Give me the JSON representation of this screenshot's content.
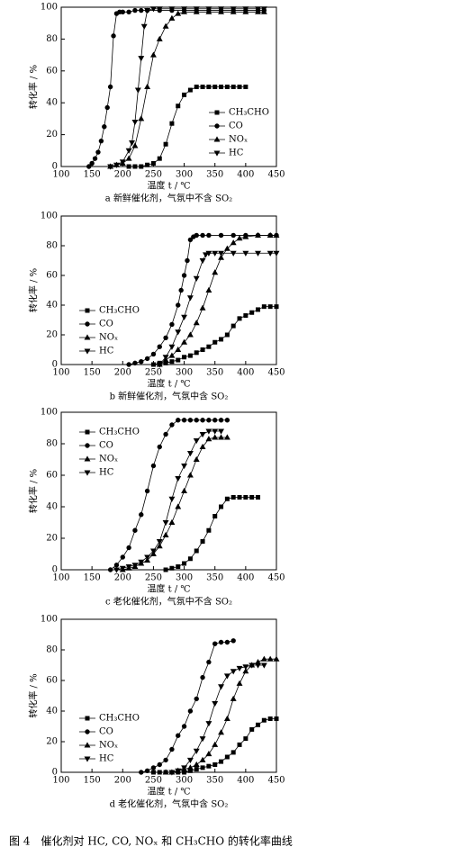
{
  "figure_caption": "图 4　催化剂对 HC, CO, NOₓ 和 CH₃CHO 的转化率曲线",
  "chart_data": [
    {
      "type": "line",
      "caption": "a  新鲜催化剂，气氛中不含 SO₂",
      "xlabel": "温度 t / ℃",
      "ylabel": "转化率 / %",
      "xlim": [
        100,
        450
      ],
      "ylim": [
        0,
        100
      ],
      "xticks": [
        100,
        150,
        200,
        250,
        300,
        350,
        400,
        450
      ],
      "yticks": [
        0,
        20,
        40,
        60,
        80,
        100
      ],
      "legend": "lower right",
      "series": [
        {
          "name": "CH₃CHO",
          "marker": "square",
          "color": "#000000",
          "x": [
            210,
            220,
            230,
            240,
            250,
            260,
            270,
            280,
            290,
            300,
            310,
            320,
            330,
            340,
            350,
            360,
            370,
            380,
            390,
            400
          ],
          "values": [
            0,
            0,
            0,
            1,
            2,
            5,
            14,
            27,
            38,
            45,
            48,
            50,
            50,
            50,
            50,
            50,
            50,
            50,
            50,
            50
          ]
        },
        {
          "name": "CO",
          "marker": "circle",
          "color": "#000000",
          "x": [
            145,
            150,
            155,
            160,
            165,
            170,
            175,
            180,
            185,
            190,
            195,
            200,
            210,
            220,
            230,
            240,
            260,
            280,
            300,
            320,
            340,
            360,
            380,
            400,
            420,
            430
          ],
          "values": [
            0,
            2,
            5,
            9,
            16,
            25,
            37,
            50,
            82,
            96,
            97,
            97,
            97,
            98,
            98,
            98,
            98,
            98,
            98,
            98,
            98,
            98,
            98,
            98,
            98,
            98
          ]
        },
        {
          "name": "NOₓ",
          "marker": "up",
          "color": "#000000",
          "x": [
            180,
            190,
            200,
            210,
            220,
            230,
            240,
            250,
            260,
            270,
            280,
            290,
            300,
            320,
            340,
            360,
            380,
            400,
            420,
            430
          ],
          "values": [
            0,
            1,
            2,
            5,
            13,
            30,
            50,
            70,
            80,
            88,
            93,
            96,
            97,
            97,
            97,
            97,
            97,
            97,
            97,
            97
          ]
        },
        {
          "name": "HC",
          "marker": "down",
          "color": "#000000",
          "x": [
            180,
            190,
            200,
            210,
            215,
            220,
            225,
            230,
            235,
            240,
            250,
            260,
            280,
            300,
            320,
            340,
            360,
            380,
            400,
            420,
            430
          ],
          "values": [
            0,
            1,
            3,
            10,
            15,
            28,
            48,
            68,
            88,
            98,
            99,
            99,
            99,
            99,
            99,
            99,
            99,
            99,
            99,
            99,
            99
          ]
        }
      ]
    },
    {
      "type": "line",
      "caption": "b  新鲜催化剂，气氛中含 SO₂",
      "xlabel": "温度 t / ℃",
      "ylabel": "转化率 / %",
      "xlim": [
        100,
        450
      ],
      "ylim": [
        0,
        100
      ],
      "xticks": [
        100,
        150,
        200,
        250,
        300,
        350,
        400,
        450
      ],
      "yticks": [
        0,
        20,
        40,
        60,
        80,
        100
      ],
      "legend": "lower left",
      "series": [
        {
          "name": "CH₃CHO",
          "marker": "square",
          "color": "#000000",
          "x": [
            250,
            260,
            270,
            280,
            290,
            300,
            310,
            320,
            330,
            340,
            350,
            360,
            370,
            380,
            390,
            400,
            410,
            420,
            430,
            440,
            450
          ],
          "values": [
            0,
            1,
            1,
            2,
            3,
            5,
            6,
            8,
            10,
            12,
            15,
            17,
            20,
            26,
            31,
            33,
            35,
            37,
            39,
            39,
            39
          ]
        },
        {
          "name": "CO",
          "marker": "circle",
          "color": "#000000",
          "x": [
            210,
            220,
            230,
            240,
            250,
            260,
            270,
            280,
            290,
            295,
            300,
            305,
            310,
            315,
            320,
            330,
            340,
            360,
            380,
            400,
            420,
            440,
            450
          ],
          "values": [
            0,
            1,
            2,
            4,
            7,
            12,
            18,
            27,
            40,
            50,
            60,
            70,
            84,
            86,
            87,
            87,
            87,
            87,
            87,
            87,
            87,
            87,
            87
          ]
        },
        {
          "name": "NOₓ",
          "marker": "up",
          "color": "#000000",
          "x": [
            260,
            270,
            280,
            290,
            300,
            310,
            320,
            330,
            340,
            350,
            360,
            370,
            380,
            390,
            400,
            420,
            440,
            450
          ],
          "values": [
            0,
            3,
            6,
            10,
            15,
            20,
            28,
            38,
            50,
            62,
            72,
            78,
            82,
            85,
            86,
            87,
            87,
            87
          ]
        },
        {
          "name": "HC",
          "marker": "down",
          "color": "#000000",
          "x": [
            260,
            270,
            280,
            290,
            300,
            310,
            320,
            330,
            335,
            340,
            350,
            360,
            380,
            400,
            420,
            440,
            450
          ],
          "values": [
            0,
            5,
            12,
            22,
            32,
            45,
            58,
            70,
            74,
            75,
            75,
            75,
            75,
            75,
            75,
            75,
            75
          ]
        }
      ]
    },
    {
      "type": "line",
      "caption": "c  老化催化剂，气氛中不含 SO₂",
      "xlabel": "温度 t / ℃",
      "ylabel": "转化率 / %",
      "xlim": [
        100,
        450
      ],
      "ylim": [
        0,
        100
      ],
      "xticks": [
        100,
        150,
        200,
        250,
        300,
        350,
        400,
        450
      ],
      "yticks": [
        0,
        20,
        40,
        60,
        80,
        100
      ],
      "legend": "upper left",
      "series": [
        {
          "name": "CH₃CHO",
          "marker": "square",
          "color": "#000000",
          "x": [
            270,
            280,
            290,
            300,
            310,
            320,
            330,
            340,
            350,
            360,
            370,
            380,
            390,
            400,
            410,
            420
          ],
          "values": [
            0,
            1,
            2,
            4,
            7,
            12,
            18,
            25,
            34,
            40,
            45,
            46,
            46,
            46,
            46,
            46
          ]
        },
        {
          "name": "CO",
          "marker": "circle",
          "color": "#000000",
          "x": [
            180,
            190,
            200,
            210,
            220,
            230,
            240,
            250,
            260,
            270,
            280,
            290,
            300,
            310,
            320,
            330,
            340,
            350,
            360,
            370
          ],
          "values": [
            0,
            3,
            8,
            14,
            25,
            35,
            50,
            66,
            78,
            86,
            92,
            95,
            95,
            95,
            95,
            95,
            95,
            95,
            95,
            95
          ]
        },
        {
          "name": "NOₓ",
          "marker": "up",
          "color": "#000000",
          "x": [
            200,
            210,
            220,
            230,
            240,
            250,
            260,
            270,
            280,
            290,
            300,
            310,
            320,
            330,
            340,
            350,
            360,
            370
          ],
          "values": [
            0,
            1,
            2,
            4,
            6,
            10,
            15,
            22,
            30,
            40,
            50,
            60,
            70,
            78,
            83,
            84,
            84,
            84
          ]
        },
        {
          "name": "HC",
          "marker": "down",
          "color": "#000000",
          "x": [
            190,
            200,
            210,
            220,
            230,
            240,
            250,
            260,
            270,
            280,
            290,
            300,
            310,
            320,
            330,
            340,
            350,
            360
          ],
          "values": [
            0,
            1,
            2,
            3,
            5,
            8,
            12,
            18,
            30,
            45,
            58,
            66,
            74,
            82,
            86,
            88,
            88,
            88
          ]
        }
      ]
    },
    {
      "type": "line",
      "caption": "d 老化催化剂，气氛中含 SO₂",
      "xlabel": "温度 t / ℃",
      "ylabel": "转化率 / %",
      "xlim": [
        100,
        450
      ],
      "ylim": [
        0,
        100
      ],
      "xticks": [
        100,
        150,
        200,
        250,
        300,
        350,
        400,
        450
      ],
      "yticks": [
        0,
        20,
        40,
        60,
        80,
        100
      ],
      "legend": "lower left",
      "series": [
        {
          "name": "CH₃CHO",
          "marker": "square",
          "color": "#000000",
          "x": [
            250,
            260,
            270,
            280,
            290,
            300,
            310,
            320,
            330,
            340,
            350,
            360,
            370,
            380,
            390,
            400,
            410,
            420,
            430,
            440,
            450
          ],
          "values": [
            0,
            0,
            0,
            0,
            0,
            0,
            1,
            2,
            3,
            4,
            5,
            7,
            10,
            13,
            18,
            22,
            28,
            31,
            34,
            35,
            35
          ]
        },
        {
          "name": "CO",
          "marker": "circle",
          "color": "#000000",
          "x": [
            230,
            240,
            250,
            260,
            270,
            280,
            290,
            300,
            310,
            320,
            330,
            340,
            350,
            360,
            370,
            380
          ],
          "values": [
            0,
            1,
            3,
            5,
            8,
            15,
            24,
            30,
            40,
            48,
            62,
            72,
            84,
            85,
            85,
            86
          ]
        },
        {
          "name": "NOₓ",
          "marker": "up",
          "color": "#000000",
          "x": [
            270,
            280,
            290,
            300,
            310,
            320,
            330,
            340,
            350,
            360,
            370,
            380,
            390,
            400,
            410,
            420,
            430,
            440,
            450
          ],
          "values": [
            0,
            0,
            1,
            2,
            3,
            5,
            8,
            12,
            18,
            26,
            35,
            48,
            58,
            66,
            70,
            72,
            74,
            74,
            74
          ]
        },
        {
          "name": "HC",
          "marker": "down",
          "color": "#000000",
          "x": [
            280,
            290,
            300,
            310,
            320,
            330,
            340,
            350,
            360,
            370,
            380,
            390,
            400,
            410,
            420,
            430
          ],
          "values": [
            0,
            1,
            3,
            8,
            14,
            22,
            32,
            45,
            56,
            63,
            66,
            68,
            69,
            70,
            70,
            70
          ]
        }
      ]
    }
  ]
}
